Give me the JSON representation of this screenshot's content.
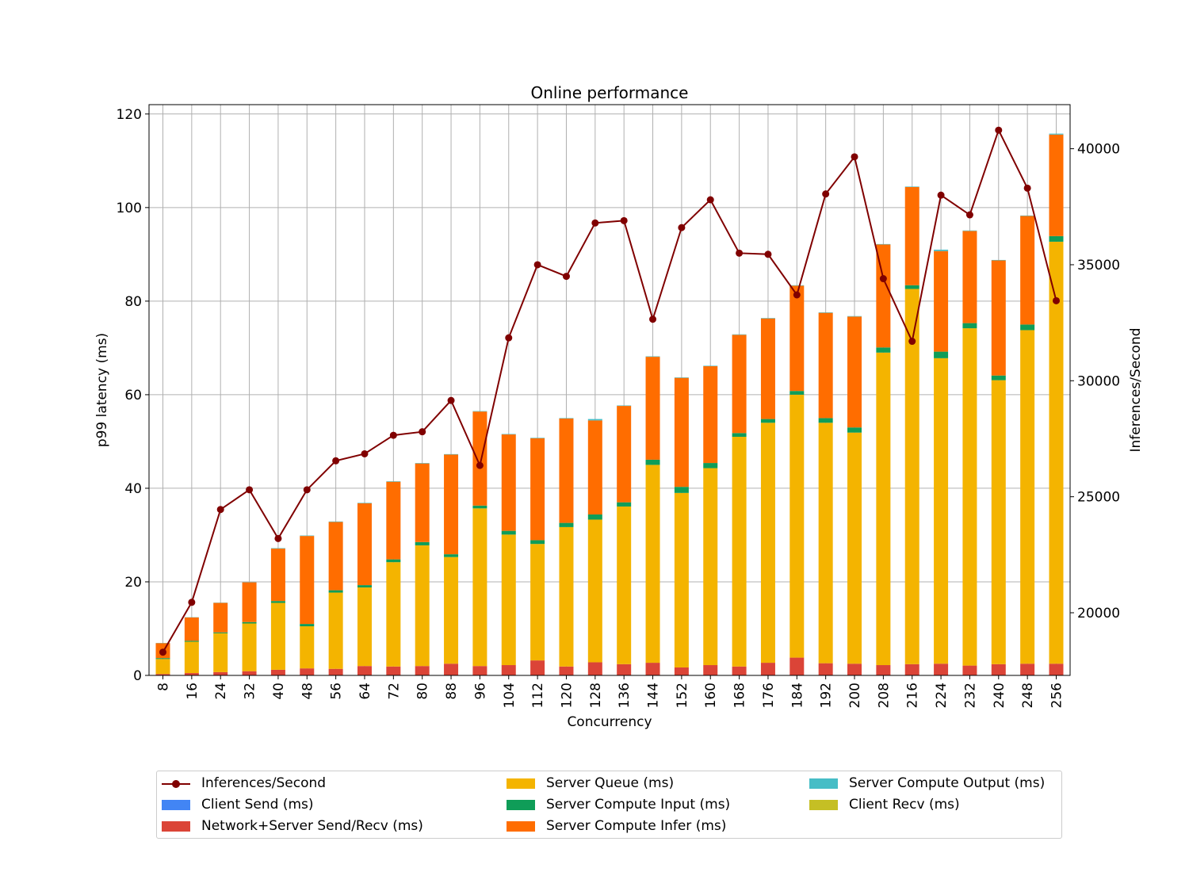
{
  "chart_data": {
    "type": "bar",
    "title": "Online performance",
    "xlabel": "Concurrency",
    "ylabel": "p99 latency (ms)",
    "y2label": "Inferences/Second",
    "ylim": [
      0,
      122
    ],
    "y2lim": [
      17300,
      41900
    ],
    "yticks": [
      0,
      20,
      40,
      60,
      80,
      100,
      120
    ],
    "y2ticks": [
      20000,
      25000,
      30000,
      35000,
      40000
    ],
    "grid": true,
    "stacked": true,
    "legend_position": "below",
    "categories": [
      "8",
      "16",
      "24",
      "32",
      "40",
      "48",
      "56",
      "64",
      "72",
      "80",
      "88",
      "96",
      "104",
      "112",
      "120",
      "128",
      "136",
      "144",
      "152",
      "160",
      "168",
      "176",
      "184",
      "192",
      "200",
      "208",
      "216",
      "224",
      "232",
      "240",
      "248",
      "256"
    ],
    "series": [
      {
        "name": "Client Send (ms)",
        "color": "#4285f4",
        "values": [
          0,
          0,
          0,
          0,
          0,
          0,
          0,
          0,
          0,
          0,
          0,
          0,
          0,
          0,
          0,
          0,
          0,
          0,
          0,
          0,
          0,
          0,
          0,
          0,
          0,
          0,
          0,
          0,
          0,
          0,
          0,
          0
        ]
      },
      {
        "name": "Network+Server Send/Recv (ms)",
        "color": "#db4437",
        "values": [
          0.3,
          0.5,
          0.7,
          0.9,
          1.2,
          1.5,
          1.4,
          2.0,
          1.9,
          2.0,
          2.5,
          2.0,
          2.2,
          3.2,
          1.9,
          2.8,
          2.4,
          2.7,
          1.7,
          2.2,
          1.9,
          2.7,
          3.8,
          2.6,
          2.5,
          2.2,
          2.4,
          2.5,
          2.1,
          2.4,
          2.5,
          2.5
        ]
      },
      {
        "name": "Server Queue (ms)",
        "color": "#f4b400",
        "values": [
          3.2,
          6.7,
          8.3,
          10.2,
          14.3,
          9.0,
          16.3,
          16.8,
          22.3,
          25.8,
          22.8,
          33.7,
          27.9,
          24.9,
          29.8,
          30.5,
          33.7,
          42.3,
          37.3,
          42.1,
          49.1,
          51.3,
          56.2,
          51.4,
          49.4,
          66.8,
          80.2,
          65.3,
          72.1,
          60.7,
          71.3,
          90.2
        ]
      },
      {
        "name": "Server Compute Input (ms)",
        "color": "#0f9d58",
        "values": [
          0.2,
          0.2,
          0.2,
          0.3,
          0.4,
          0.5,
          0.5,
          0.5,
          0.6,
          0.7,
          0.6,
          0.6,
          0.8,
          0.8,
          0.9,
          1.1,
          0.9,
          1.1,
          1.3,
          1.1,
          0.8,
          0.8,
          0.8,
          1.0,
          1.1,
          1.1,
          0.8,
          1.4,
          1.1,
          1.0,
          1.2,
          1.2
        ]
      },
      {
        "name": "Server Compute Infer (ms)",
        "color": "#ff6d00",
        "values": [
          3.2,
          5.0,
          6.3,
          8.5,
          11.2,
          18.8,
          14.6,
          17.5,
          16.6,
          16.8,
          21.3,
          20.1,
          20.6,
          21.8,
          22.3,
          20.1,
          20.6,
          22.0,
          23.3,
          20.7,
          21.0,
          21.5,
          22.5,
          22.5,
          23.7,
          22.0,
          21.0,
          21.5,
          19.7,
          24.6,
          23.2,
          21.7
        ]
      },
      {
        "name": "Server Compute Output (ms)",
        "color": "#46bdc6",
        "values": [
          0.05,
          0.05,
          0.05,
          0.05,
          0.1,
          0.1,
          0.1,
          0.1,
          0.1,
          0.1,
          0.1,
          0.1,
          0.1,
          0.1,
          0.1,
          0.3,
          0.1,
          0.1,
          0.1,
          0.1,
          0.1,
          0.1,
          0.1,
          0.1,
          0.1,
          0.1,
          0.1,
          0.3,
          0.1,
          0.1,
          0.1,
          0.2
        ]
      },
      {
        "name": "Client Recv (ms)",
        "color": "#c5bf24",
        "values": [
          0,
          0,
          0,
          0,
          0,
          0,
          0,
          0,
          0,
          0,
          0,
          0,
          0,
          0,
          0,
          0,
          0,
          0,
          0,
          0,
          0,
          0,
          0,
          0,
          0,
          0,
          0,
          0,
          0,
          0,
          0,
          0
        ]
      }
    ],
    "line": {
      "name": "Inferences/Second",
      "color": "#800000",
      "values": [
        18300,
        20450,
        24450,
        25300,
        23200,
        25300,
        26550,
        26850,
        27650,
        27800,
        29150,
        26350,
        31850,
        35000,
        34500,
        36800,
        36900,
        32650,
        36600,
        37800,
        35500,
        35450,
        33700,
        38050,
        39650,
        34400,
        31700,
        38000,
        37150,
        40800,
        38300,
        33450
      ]
    },
    "legend_entries": [
      "Inferences/Second",
      "Client Send (ms)",
      "Network+Server Send/Recv (ms)",
      "Server Queue (ms)",
      "Server Compute Input (ms)",
      "Server Compute Infer (ms)",
      "Server Compute Output (ms)",
      "Client Recv (ms)"
    ]
  }
}
